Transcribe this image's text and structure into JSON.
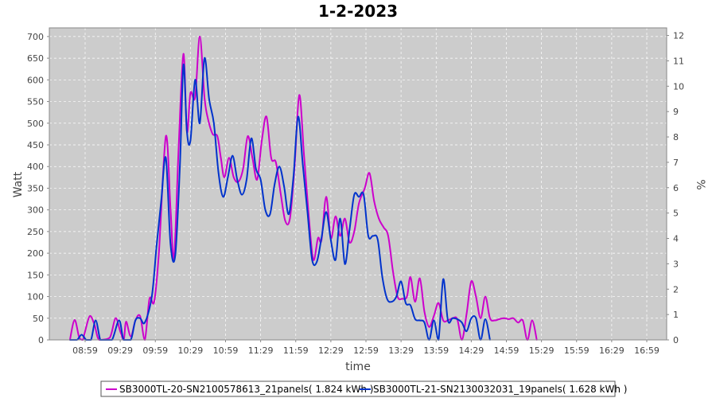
{
  "chart_data": {
    "type": "line",
    "title": "1-2-2023",
    "xlabel": "time",
    "ylabel": "Watt",
    "y2label": "%",
    "ylim": [
      0,
      720
    ],
    "y2lim": [
      0,
      12.3
    ],
    "yticks": [
      0,
      50,
      100,
      150,
      200,
      250,
      300,
      350,
      400,
      450,
      500,
      550,
      600,
      650,
      700
    ],
    "y2ticks": [
      0,
      1,
      2,
      3,
      4,
      5,
      6,
      7,
      8,
      9,
      10,
      11,
      12
    ],
    "xticks": [
      "08:59",
      "09:29",
      "09:59",
      "10:29",
      "10:59",
      "11:29",
      "11:59",
      "12:29",
      "12:59",
      "13:29",
      "13:59",
      "14:29",
      "14:59",
      "15:29",
      "15:59",
      "16:29",
      "16:59"
    ],
    "grid": true,
    "legend_position": "bottom",
    "background": "#cccccc",
    "series": [
      {
        "name": "SB3000TL-20-SN2100578613_21panels( 1.824 kWh )",
        "color": "#cc00cc",
        "points": [
          [
            "08:46",
            0
          ],
          [
            "08:50",
            46
          ],
          [
            "08:54",
            5
          ],
          [
            "08:57",
            0
          ],
          [
            "08:59",
            20
          ],
          [
            "09:03",
            55
          ],
          [
            "09:07",
            35
          ],
          [
            "09:11",
            0
          ],
          [
            "09:20",
            5
          ],
          [
            "09:25",
            50
          ],
          [
            "09:29",
            20
          ],
          [
            "09:32",
            0
          ],
          [
            "09:34",
            42
          ],
          [
            "09:38",
            8
          ],
          [
            "09:42",
            45
          ],
          [
            "09:46",
            55
          ],
          [
            "09:50",
            0
          ],
          [
            "09:54",
            95
          ],
          [
            "09:58",
            88
          ],
          [
            "10:02",
            200
          ],
          [
            "10:08",
            470
          ],
          [
            "10:12",
            300
          ],
          [
            "10:15",
            190
          ],
          [
            "10:19",
            450
          ],
          [
            "10:23",
            660
          ],
          [
            "10:26",
            480
          ],
          [
            "10:29",
            570
          ],
          [
            "10:33",
            560
          ],
          [
            "10:37",
            700
          ],
          [
            "10:41",
            560
          ],
          [
            "10:44",
            510
          ],
          [
            "10:48",
            475
          ],
          [
            "10:52",
            470
          ],
          [
            "10:55",
            420
          ],
          [
            "10:58",
            375
          ],
          [
            "11:02",
            420
          ],
          [
            "11:06",
            375
          ],
          [
            "11:10",
            365
          ],
          [
            "11:14",
            395
          ],
          [
            "11:18",
            470
          ],
          [
            "11:22",
            420
          ],
          [
            "11:26",
            370
          ],
          [
            "11:30",
            460
          ],
          [
            "11:34",
            515
          ],
          [
            "11:38",
            420
          ],
          [
            "11:42",
            410
          ],
          [
            "11:46",
            340
          ],
          [
            "11:50",
            275
          ],
          [
            "11:54",
            280
          ],
          [
            "11:58",
            400
          ],
          [
            "12:02",
            565
          ],
          [
            "12:06",
            430
          ],
          [
            "12:10",
            290
          ],
          [
            "12:14",
            185
          ],
          [
            "12:18",
            235
          ],
          [
            "12:21",
            230
          ],
          [
            "12:25",
            330
          ],
          [
            "12:29",
            235
          ],
          [
            "12:33",
            285
          ],
          [
            "12:37",
            240
          ],
          [
            "12:41",
            280
          ],
          [
            "12:45",
            225
          ],
          [
            "12:49",
            250
          ],
          [
            "12:53",
            315
          ],
          [
            "12:58",
            350
          ],
          [
            "13:02",
            385
          ],
          [
            "13:06",
            320
          ],
          [
            "13:10",
            280
          ],
          [
            "13:14",
            260
          ],
          [
            "13:18",
            240
          ],
          [
            "13:22",
            160
          ],
          [
            "13:26",
            100
          ],
          [
            "13:30",
            95
          ],
          [
            "13:34",
            100
          ],
          [
            "13:37",
            145
          ],
          [
            "13:41",
            88
          ],
          [
            "13:45",
            142
          ],
          [
            "13:49",
            65
          ],
          [
            "13:53",
            30
          ],
          [
            "13:57",
            55
          ],
          [
            "14:01",
            85
          ],
          [
            "14:05",
            45
          ],
          [
            "14:09",
            45
          ],
          [
            "14:13",
            50
          ],
          [
            "14:17",
            48
          ],
          [
            "14:21",
            0
          ],
          [
            "14:25",
            60
          ],
          [
            "14:29",
            135
          ],
          [
            "14:33",
            100
          ],
          [
            "14:37",
            50
          ],
          [
            "14:41",
            100
          ],
          [
            "14:45",
            50
          ],
          [
            "14:49",
            45
          ],
          [
            "14:53",
            48
          ],
          [
            "14:57",
            50
          ],
          [
            "15:01",
            48
          ],
          [
            "15:05",
            50
          ],
          [
            "15:09",
            40
          ],
          [
            "15:13",
            45
          ],
          [
            "15:17",
            0
          ],
          [
            "15:21",
            45
          ],
          [
            "15:25",
            0
          ]
        ]
      },
      {
        "name": "SB3000TL-21-SN2130032031_19panels( 1.628 kWh )",
        "color": "#0033cc",
        "points": [
          [
            "08:46",
            0
          ],
          [
            "08:52",
            0
          ],
          [
            "08:56",
            12
          ],
          [
            "09:00",
            0
          ],
          [
            "09:04",
            0
          ],
          [
            "09:08",
            45
          ],
          [
            "09:12",
            0
          ],
          [
            "09:16",
            0
          ],
          [
            "09:22",
            0
          ],
          [
            "09:28",
            45
          ],
          [
            "09:32",
            0
          ],
          [
            "09:38",
            0
          ],
          [
            "09:42",
            45
          ],
          [
            "09:46",
            50
          ],
          [
            "09:50",
            40
          ],
          [
            "09:56",
            100
          ],
          [
            "10:00",
            215
          ],
          [
            "10:04",
            320
          ],
          [
            "10:08",
            420
          ],
          [
            "10:12",
            220
          ],
          [
            "10:16",
            195
          ],
          [
            "10:20",
            400
          ],
          [
            "10:23",
            635
          ],
          [
            "10:26",
            480
          ],
          [
            "10:29",
            460
          ],
          [
            "10:33",
            600
          ],
          [
            "10:37",
            500
          ],
          [
            "10:41",
            650
          ],
          [
            "10:45",
            555
          ],
          [
            "10:49",
            500
          ],
          [
            "10:53",
            385
          ],
          [
            "10:57",
            330
          ],
          [
            "11:01",
            375
          ],
          [
            "11:05",
            425
          ],
          [
            "11:09",
            370
          ],
          [
            "11:13",
            335
          ],
          [
            "11:17",
            370
          ],
          [
            "11:21",
            465
          ],
          [
            "11:25",
            395
          ],
          [
            "11:29",
            370
          ],
          [
            "11:33",
            300
          ],
          [
            "11:37",
            290
          ],
          [
            "11:41",
            360
          ],
          [
            "11:45",
            400
          ],
          [
            "11:49",
            355
          ],
          [
            "11:53",
            290
          ],
          [
            "11:57",
            375
          ],
          [
            "12:01",
            515
          ],
          [
            "12:05",
            405
          ],
          [
            "12:09",
            295
          ],
          [
            "12:13",
            185
          ],
          [
            "12:17",
            180
          ],
          [
            "12:21",
            235
          ],
          [
            "12:25",
            295
          ],
          [
            "12:29",
            230
          ],
          [
            "12:33",
            185
          ],
          [
            "12:37",
            280
          ],
          [
            "12:41",
            175
          ],
          [
            "12:45",
            255
          ],
          [
            "12:49",
            335
          ],
          [
            "12:53",
            330
          ],
          [
            "12:57",
            335
          ],
          [
            "13:01",
            240
          ],
          [
            "13:05",
            240
          ],
          [
            "13:09",
            232
          ],
          [
            "13:13",
            145
          ],
          [
            "13:17",
            95
          ],
          [
            "13:21",
            88
          ],
          [
            "13:25",
            100
          ],
          [
            "13:29",
            135
          ],
          [
            "13:33",
            85
          ],
          [
            "13:37",
            80
          ],
          [
            "13:41",
            48
          ],
          [
            "13:45",
            45
          ],
          [
            "13:49",
            40
          ],
          [
            "13:53",
            0
          ],
          [
            "13:57",
            45
          ],
          [
            "14:01",
            0
          ],
          [
            "14:05",
            140
          ],
          [
            "14:09",
            45
          ],
          [
            "14:13",
            50
          ],
          [
            "14:17",
            48
          ],
          [
            "14:21",
            40
          ],
          [
            "14:25",
            20
          ],
          [
            "14:29",
            50
          ],
          [
            "14:33",
            50
          ],
          [
            "14:37",
            0
          ],
          [
            "14:41",
            48
          ],
          [
            "14:45",
            0
          ]
        ]
      }
    ]
  },
  "colors": {
    "plot_background": "#cccccc",
    "grid": "#ffffff",
    "axis": "#888888"
  }
}
